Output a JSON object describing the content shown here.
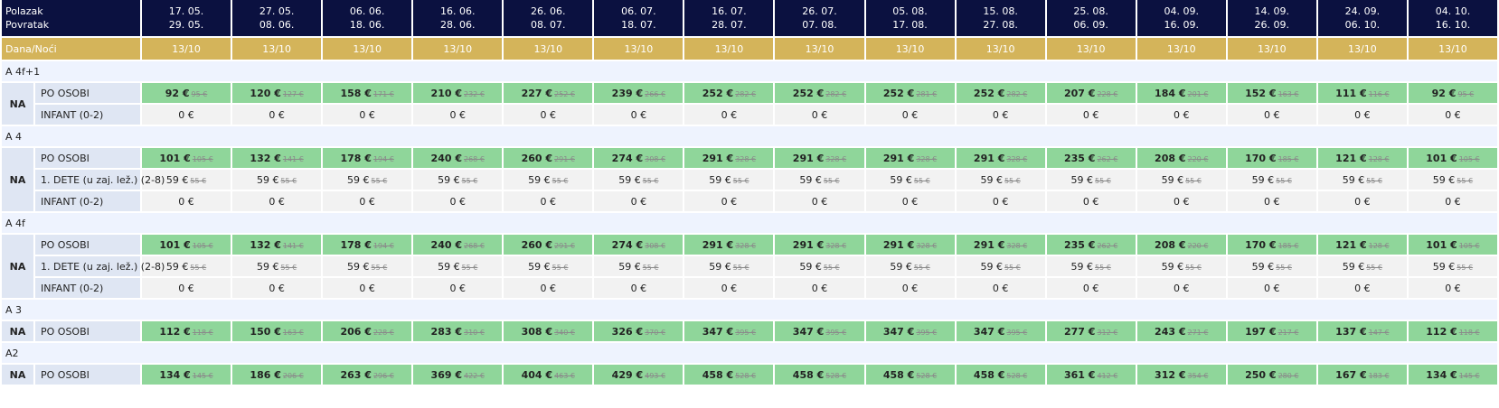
{
  "header": {
    "departure_label": "Polazak",
    "return_label": "Povratak",
    "days_nights_label": "Dana/Noći",
    "columns": [
      {
        "departure": "17. 05.",
        "return": "29. 05.",
        "days_nights": "13/10"
      },
      {
        "departure": "27. 05.",
        "return": "08. 06.",
        "days_nights": "13/10"
      },
      {
        "departure": "06. 06.",
        "return": "18. 06.",
        "days_nights": "13/10"
      },
      {
        "departure": "16. 06.",
        "return": "28. 06.",
        "days_nights": "13/10"
      },
      {
        "departure": "26. 06.",
        "return": "08. 07.",
        "days_nights": "13/10"
      },
      {
        "departure": "06. 07.",
        "return": "18. 07.",
        "days_nights": "13/10"
      },
      {
        "departure": "16. 07.",
        "return": "28. 07.",
        "days_nights": "13/10"
      },
      {
        "departure": "26. 07.",
        "return": "07. 08.",
        "days_nights": "13/10"
      },
      {
        "departure": "05. 08.",
        "return": "17. 08.",
        "days_nights": "13/10"
      },
      {
        "departure": "15. 08.",
        "return": "27. 08.",
        "days_nights": "13/10"
      },
      {
        "departure": "25. 08.",
        "return": "06. 09.",
        "days_nights": "13/10"
      },
      {
        "departure": "04. 09.",
        "return": "16. 09.",
        "days_nights": "13/10"
      },
      {
        "departure": "14. 09.",
        "return": "26. 09.",
        "days_nights": "13/10"
      },
      {
        "departure": "24. 09.",
        "return": "06. 10.",
        "days_nights": "13/10"
      },
      {
        "departure": "04. 10.",
        "return": "16. 10.",
        "days_nights": "13/10"
      }
    ]
  },
  "colors": {
    "header_bg": "#0b1140",
    "days_bg": "#d4b45a",
    "price_green": "#8fd69a",
    "section_bg": "#eef3fe"
  },
  "sections": [
    {
      "title": "A 4f+1",
      "board": "NA",
      "rows": [
        {
          "label": "PO OSOBI",
          "highlight": true,
          "prices": [
            "92 €",
            "120 €",
            "158 €",
            "210 €",
            "227 €",
            "239 €",
            "252 €",
            "252 €",
            "252 €",
            "252 €",
            "207 €",
            "184 €",
            "152 €",
            "111 €",
            "92 €"
          ],
          "old": [
            "95 €",
            "127 €",
            "171 €",
            "232 €",
            "252 €",
            "266 €",
            "282 €",
            "282 €",
            "281 €",
            "282 €",
            "228 €",
            "201 €",
            "163 €",
            "116 €",
            "95 €"
          ]
        },
        {
          "label": "INFANT (0-2)",
          "highlight": false,
          "prices": [
            "0 €",
            "0 €",
            "0 €",
            "0 €",
            "0 €",
            "0 €",
            "0 €",
            "0 €",
            "0 €",
            "0 €",
            "0 €",
            "0 €",
            "0 €",
            "0 €",
            "0 €"
          ],
          "old": []
        }
      ]
    },
    {
      "title": "A 4",
      "board": "NA",
      "rows": [
        {
          "label": "PO OSOBI",
          "highlight": true,
          "prices": [
            "101 €",
            "132 €",
            "178 €",
            "240 €",
            "260 €",
            "274 €",
            "291 €",
            "291 €",
            "291 €",
            "291 €",
            "235 €",
            "208 €",
            "170 €",
            "121 €",
            "101 €"
          ],
          "old": [
            "105 €",
            "141 €",
            "194 €",
            "268 €",
            "291 €",
            "308 €",
            "328 €",
            "328 €",
            "328 €",
            "328 €",
            "262 €",
            "220 €",
            "185 €",
            "128 €",
            "105 €"
          ]
        },
        {
          "label": "1. DETE (u zaj. lež.) (2-8)",
          "highlight": false,
          "prices": [
            "59 €",
            "59 €",
            "59 €",
            "59 €",
            "59 €",
            "59 €",
            "59 €",
            "59 €",
            "59 €",
            "59 €",
            "59 €",
            "59 €",
            "59 €",
            "59 €",
            "59 €"
          ],
          "old": [
            "55 €",
            "55 €",
            "55 €",
            "55 €",
            "55 €",
            "55 €",
            "55 €",
            "55 €",
            "55 €",
            "55 €",
            "55 €",
            "55 €",
            "55 €",
            "55 €",
            "55 €"
          ]
        },
        {
          "label": "INFANT (0-2)",
          "highlight": false,
          "prices": [
            "0 €",
            "0 €",
            "0 €",
            "0 €",
            "0 €",
            "0 €",
            "0 €",
            "0 €",
            "0 €",
            "0 €",
            "0 €",
            "0 €",
            "0 €",
            "0 €",
            "0 €"
          ],
          "old": []
        }
      ]
    },
    {
      "title": "A 4f",
      "board": "NA",
      "rows": [
        {
          "label": "PO OSOBI",
          "highlight": true,
          "prices": [
            "101 €",
            "132 €",
            "178 €",
            "240 €",
            "260 €",
            "274 €",
            "291 €",
            "291 €",
            "291 €",
            "291 €",
            "235 €",
            "208 €",
            "170 €",
            "121 €",
            "101 €"
          ],
          "old": [
            "105 €",
            "141 €",
            "194 €",
            "268 €",
            "291 €",
            "308 €",
            "328 €",
            "328 €",
            "328 €",
            "328 €",
            "262 €",
            "220 €",
            "185 €",
            "128 €",
            "105 €"
          ]
        },
        {
          "label": "1. DETE (u zaj. lež.) (2-8)",
          "highlight": false,
          "prices": [
            "59 €",
            "59 €",
            "59 €",
            "59 €",
            "59 €",
            "59 €",
            "59 €",
            "59 €",
            "59 €",
            "59 €",
            "59 €",
            "59 €",
            "59 €",
            "59 €",
            "59 €"
          ],
          "old": [
            "55 €",
            "55 €",
            "55 €",
            "55 €",
            "55 €",
            "55 €",
            "55 €",
            "55 €",
            "55 €",
            "55 €",
            "55 €",
            "55 €",
            "55 €",
            "55 €",
            "55 €"
          ]
        },
        {
          "label": "INFANT (0-2)",
          "highlight": false,
          "prices": [
            "0 €",
            "0 €",
            "0 €",
            "0 €",
            "0 €",
            "0 €",
            "0 €",
            "0 €",
            "0 €",
            "0 €",
            "0 €",
            "0 €",
            "0 €",
            "0 €",
            "0 €"
          ],
          "old": []
        }
      ]
    },
    {
      "title": "A 3",
      "board": "NA",
      "rows": [
        {
          "label": "PO OSOBI",
          "highlight": true,
          "prices": [
            "112 €",
            "150 €",
            "206 €",
            "283 €",
            "308 €",
            "326 €",
            "347 €",
            "347 €",
            "347 €",
            "347 €",
            "277 €",
            "243 €",
            "197 €",
            "137 €",
            "112 €"
          ],
          "old": [
            "118 €",
            "163 €",
            "228 €",
            "310 €",
            "340 €",
            "370 €",
            "395 €",
            "395 €",
            "395 €",
            "395 €",
            "312 €",
            "271 €",
            "217 €",
            "147 €",
            "118 €"
          ]
        }
      ]
    },
    {
      "title": "A2",
      "board": "NA",
      "rows": [
        {
          "label": "PO OSOBI",
          "highlight": true,
          "prices": [
            "134 €",
            "186 €",
            "263 €",
            "369 €",
            "404 €",
            "429 €",
            "458 €",
            "458 €",
            "458 €",
            "458 €",
            "361 €",
            "312 €",
            "250 €",
            "167 €",
            "134 €"
          ],
          "old": [
            "145 €",
            "206 €",
            "296 €",
            "422 €",
            "463 €",
            "493 €",
            "528 €",
            "528 €",
            "528 €",
            "528 €",
            "412 €",
            "354 €",
            "280 €",
            "183 €",
            "145 €"
          ]
        }
      ]
    }
  ]
}
